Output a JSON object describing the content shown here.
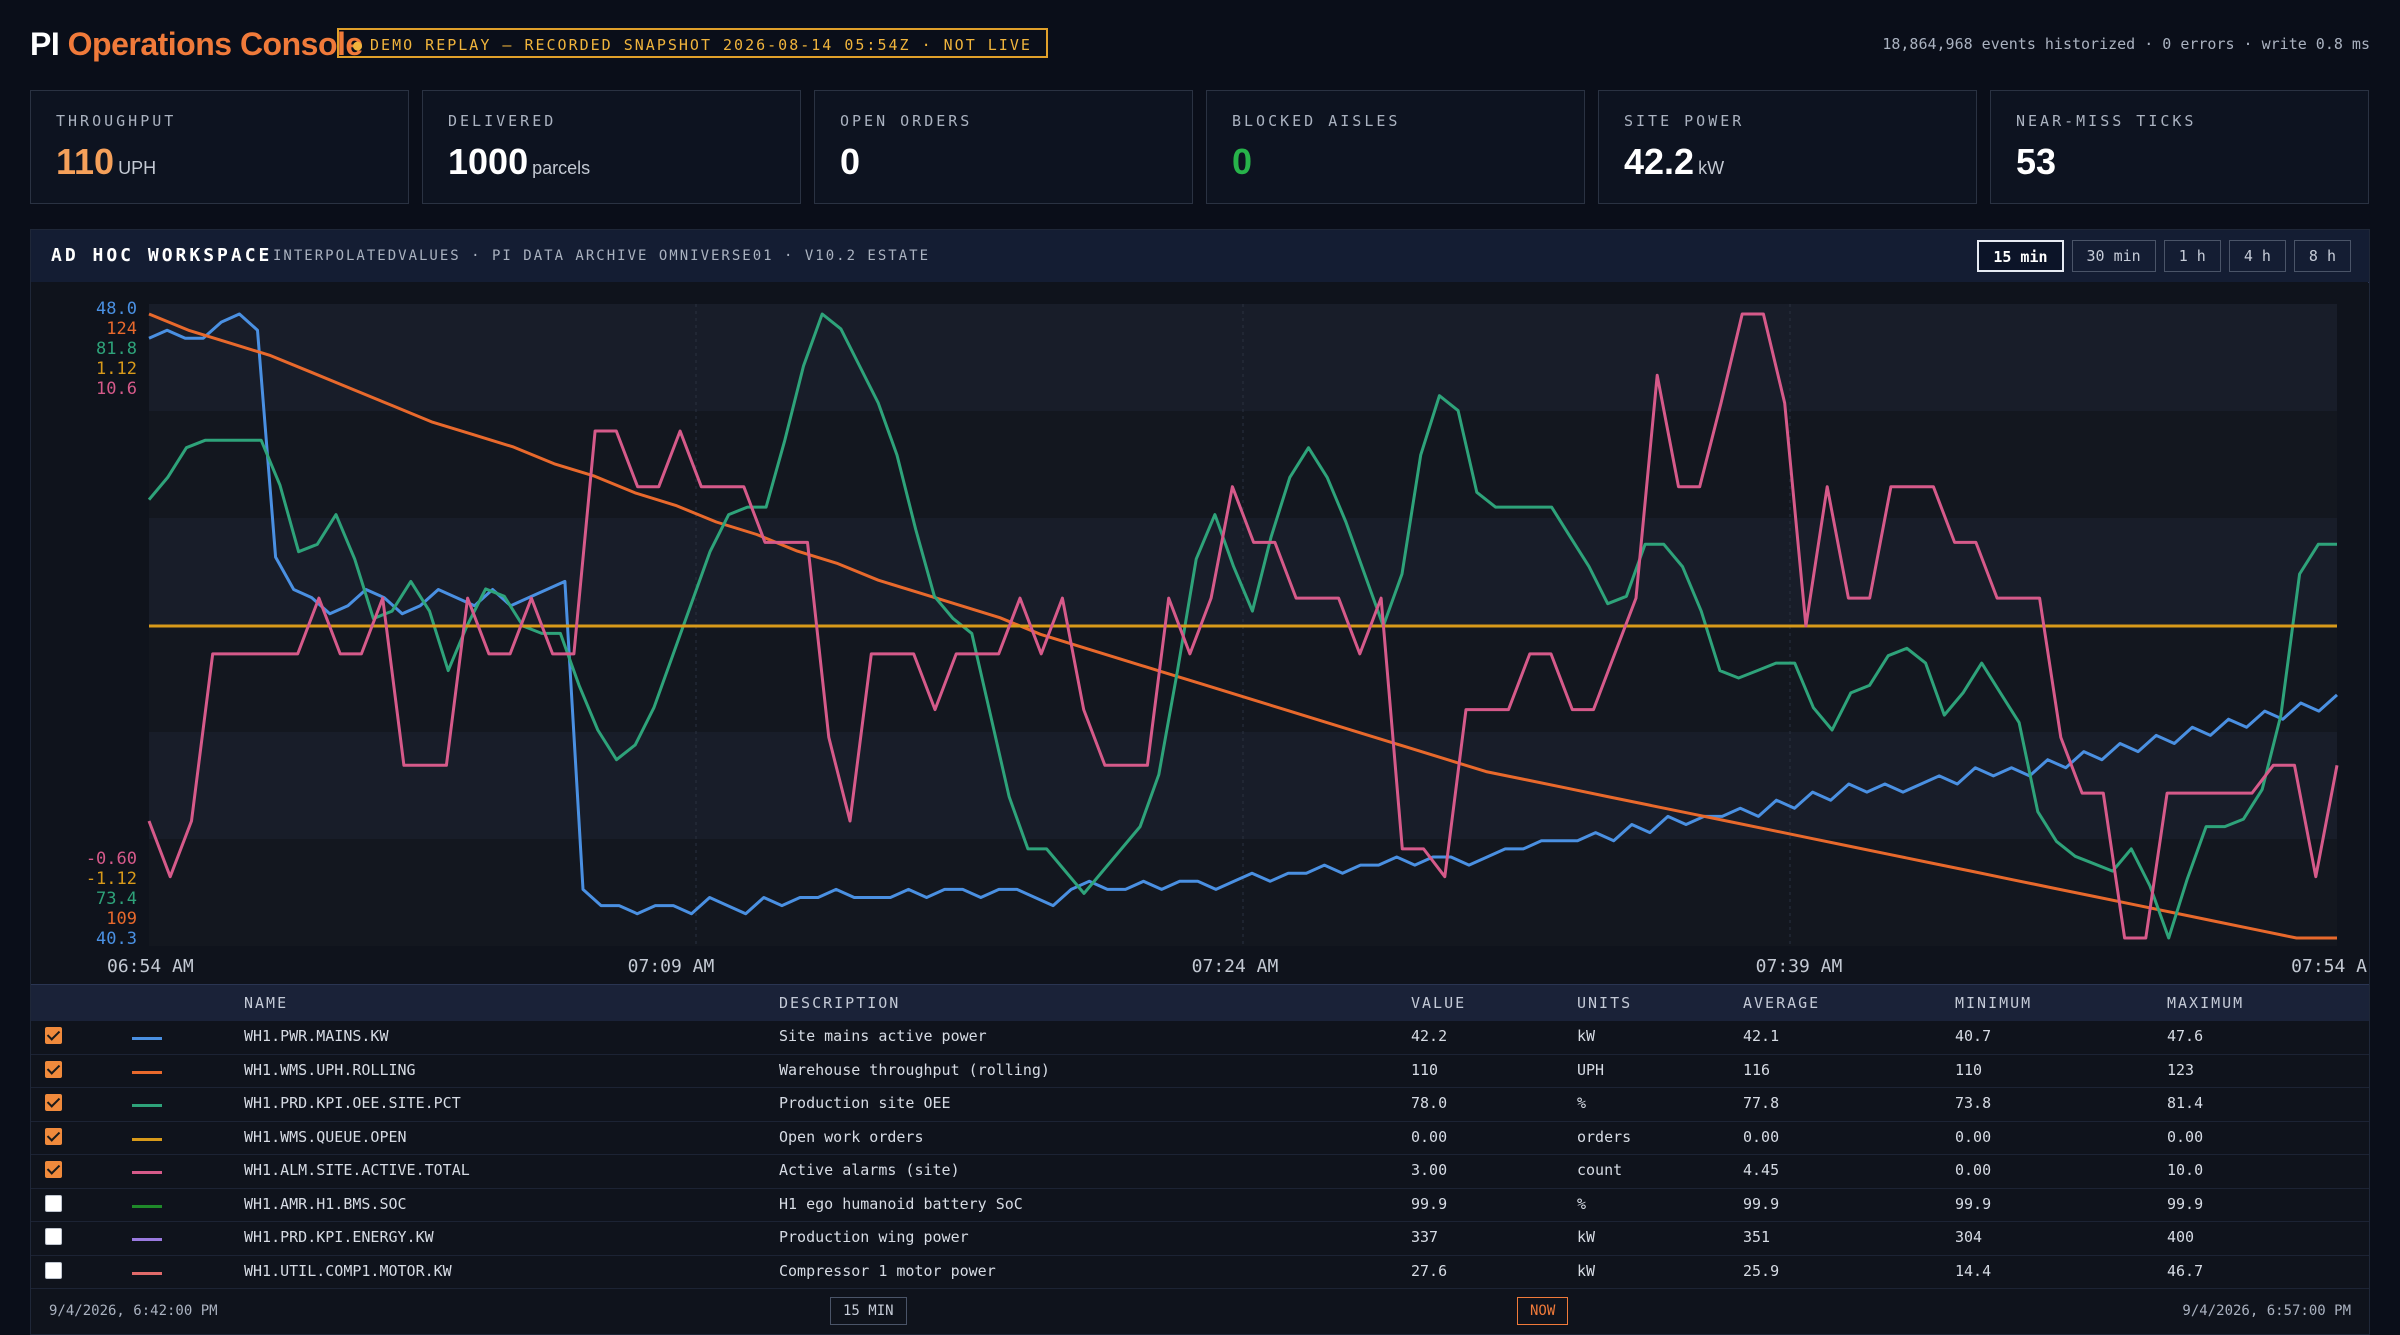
{
  "app": {
    "brand_pi": "PI",
    "brand_console": "Operations Console",
    "demo_badge": "DEMO REPLAY — RECORDED SNAPSHOT 2026-08-14 05:54Z · NOT LIVE",
    "stats": "18,864,968 events historized · 0 errors · write 0.8 ms"
  },
  "kpis": [
    {
      "label": "THROUGHPUT",
      "value": "110",
      "unit": "UPH",
      "color": "#f5a05a"
    },
    {
      "label": "DELIVERED",
      "value": "1000",
      "unit": "parcels",
      "color": "#ffffff"
    },
    {
      "label": "OPEN ORDERS",
      "value": "0",
      "unit": "",
      "color": "#ffffff"
    },
    {
      "label": "BLOCKED AISLES",
      "value": "0",
      "unit": "",
      "color": "#27b34a"
    },
    {
      "label": "SITE POWER",
      "value": "42.2",
      "unit": "kW",
      "color": "#ffffff"
    },
    {
      "label": "NEAR-MISS TICKS",
      "value": "53",
      "unit": "",
      "color": "#ffffff"
    }
  ],
  "workspace": {
    "title": "AD HOC WORKSPACE",
    "subtitle": "INTERPOLATEDVALUES · PI DATA ARCHIVE OMNIVERSE01 · V10.2 ESTATE",
    "ranges": [
      "15 min",
      "30 min",
      "1 h",
      "4 h",
      "8 h"
    ],
    "active_range": "15 min"
  },
  "chart_data": {
    "type": "line",
    "x_ticks": [
      "06:54 AM",
      "07:09 AM",
      "07:24 AM",
      "07:39 AM",
      "07:54 A"
    ],
    "grid": true,
    "series": [
      {
        "name": "WH1.PWR.MAINS.KW",
        "color": "#4a90e2",
        "axis_max": "48.0",
        "axis_min": "40.3",
        "min": 40.3,
        "max": 48.0,
        "values": [
          47.7,
          47.8,
          47.7,
          47.7,
          47.9,
          48.0,
          47.8,
          45.0,
          44.6,
          44.5,
          44.3,
          44.4,
          44.6,
          44.5,
          44.3,
          44.4,
          44.6,
          44.5,
          44.4,
          44.6,
          44.4,
          44.5,
          44.6,
          44.7,
          40.9,
          40.7,
          40.7,
          40.6,
          40.7,
          40.7,
          40.6,
          40.8,
          40.7,
          40.6,
          40.8,
          40.7,
          40.8,
          40.8,
          40.9,
          40.8,
          40.8,
          40.8,
          40.9,
          40.8,
          40.9,
          40.9,
          40.8,
          40.9,
          40.9,
          40.8,
          40.7,
          40.9,
          41.0,
          40.9,
          40.9,
          41.0,
          40.9,
          41.0,
          41.0,
          40.9,
          41.0,
          41.1,
          41.0,
          41.1,
          41.1,
          41.2,
          41.1,
          41.2,
          41.2,
          41.3,
          41.2,
          41.3,
          41.3,
          41.2,
          41.3,
          41.4,
          41.4,
          41.5,
          41.5,
          41.5,
          41.6,
          41.5,
          41.7,
          41.6,
          41.8,
          41.7,
          41.8,
          41.8,
          41.9,
          41.8,
          42.0,
          41.9,
          42.1,
          42.0,
          42.2,
          42.1,
          42.2,
          42.1,
          42.2,
          42.3,
          42.2,
          42.4,
          42.3,
          42.4,
          42.3,
          42.5,
          42.4,
          42.6,
          42.5,
          42.7,
          42.6,
          42.8,
          42.7,
          42.9,
          42.8,
          43.0,
          42.9,
          43.1,
          43.0,
          43.2,
          43.1,
          43.3
        ]
      },
      {
        "name": "WH1.WMS.UPH.ROLLING",
        "color": "#e8692c",
        "axis_max": "124",
        "axis_min": "109",
        "min": 109,
        "max": 124,
        "values": [
          124.0,
          123.6,
          123.3,
          123.0,
          122.6,
          122.2,
          121.8,
          121.4,
          121.1,
          120.8,
          120.4,
          120.1,
          119.7,
          119.4,
          119.0,
          118.7,
          118.3,
          118.0,
          117.6,
          117.3,
          117.0,
          116.7,
          116.3,
          116.0,
          115.7,
          115.4,
          115.1,
          114.8,
          114.5,
          114.2,
          113.9,
          113.6,
          113.3,
          113.0,
          112.8,
          112.6,
          112.4,
          112.2,
          112.0,
          111.8,
          111.6,
          111.4,
          111.2,
          111.0,
          110.8,
          110.6,
          110.4,
          110.2,
          110.0,
          109.8,
          109.6,
          109.4,
          109.2,
          109.0,
          109.0
        ]
      },
      {
        "name": "WH1.PRD.KPI.OEE.SITE.PCT",
        "color": "#2ea37a",
        "axis_max": "81.8",
        "axis_min": "73.4",
        "min": 73.4,
        "max": 81.8,
        "values": [
          79.3,
          79.6,
          80.0,
          80.1,
          80.1,
          80.1,
          80.1,
          79.5,
          78.6,
          78.7,
          79.1,
          78.5,
          77.7,
          77.8,
          78.2,
          77.8,
          77.0,
          77.6,
          78.1,
          78.0,
          77.6,
          77.5,
          77.5,
          76.8,
          76.2,
          75.8,
          76.0,
          76.5,
          77.2,
          77.9,
          78.6,
          79.1,
          79.2,
          79.2,
          80.1,
          81.1,
          81.8,
          81.6,
          81.1,
          80.6,
          79.9,
          78.9,
          78.0,
          77.7,
          77.5,
          76.4,
          75.3,
          74.6,
          74.6,
          74.3,
          74.0,
          74.3,
          74.6,
          74.9,
          75.6,
          77.0,
          78.5,
          79.1,
          78.4,
          77.8,
          78.8,
          79.6,
          80.0,
          79.6,
          79.0,
          78.3,
          77.6,
          78.3,
          79.9,
          80.7,
          80.5,
          79.4,
          79.2,
          79.2,
          79.2,
          79.2,
          78.8,
          78.4,
          77.9,
          78.0,
          78.7,
          78.7,
          78.4,
          77.8,
          77.0,
          76.9,
          77.0,
          77.1,
          77.1,
          76.5,
          76.2,
          76.7,
          76.8,
          77.2,
          77.3,
          77.1,
          76.4,
          76.7,
          77.1,
          76.7,
          76.3,
          75.1,
          74.7,
          74.5,
          74.4,
          74.3,
          74.6,
          74.1,
          73.4,
          74.2,
          74.9,
          74.9,
          75.0,
          75.4,
          76.4,
          78.3,
          78.7,
          78.7
        ]
      },
      {
        "name": "WH1.WMS.QUEUE.OPEN",
        "color": "#d89a1a",
        "axis_max": "1.12",
        "axis_min": "-1.12",
        "min": -1.12,
        "max": 1.12,
        "values": [
          0,
          0,
          0,
          0,
          0,
          0,
          0,
          0,
          0,
          0,
          0,
          0,
          0,
          0,
          0,
          0,
          0,
          0,
          0,
          0,
          0,
          0,
          0,
          0,
          0,
          0,
          0,
          0,
          0,
          0,
          0,
          0,
          0,
          0,
          0,
          0,
          0,
          0,
          0,
          0,
          0,
          0,
          0,
          0,
          0,
          0,
          0,
          0,
          0,
          0,
          0,
          0,
          0,
          0,
          0
        ]
      },
      {
        "name": "WH1.ALM.SITE.ACTIVE.TOTAL",
        "color": "#d65a8a",
        "axis_max": "10.6",
        "axis_min": "-0.60",
        "min": -0.6,
        "max": 10.6,
        "values": [
          1.5,
          0.5,
          1.5,
          4.5,
          4.5,
          4.5,
          4.5,
          4.5,
          5.5,
          4.5,
          4.5,
          5.5,
          2.5,
          2.5,
          2.5,
          5.5,
          4.5,
          4.5,
          5.5,
          4.5,
          4.5,
          8.5,
          8.5,
          7.5,
          7.5,
          8.5,
          7.5,
          7.5,
          7.5,
          6.5,
          6.5,
          6.5,
          3.0,
          1.5,
          4.5,
          4.5,
          4.5,
          3.5,
          4.5,
          4.5,
          4.5,
          5.5,
          4.5,
          5.5,
          3.5,
          2.5,
          2.5,
          2.5,
          5.5,
          4.5,
          5.5,
          7.5,
          6.5,
          6.5,
          5.5,
          5.5,
          5.5,
          4.5,
          5.5,
          1.0,
          1.0,
          0.5,
          3.5,
          3.5,
          3.5,
          4.5,
          4.5,
          3.5,
          3.5,
          4.5,
          5.5,
          9.5,
          7.5,
          7.5,
          9.0,
          10.6,
          10.6,
          9.0,
          5.0,
          7.5,
          5.5,
          5.5,
          7.5,
          7.5,
          7.5,
          6.5,
          6.5,
          5.5,
          5.5,
          5.5,
          3.0,
          2.0,
          2.0,
          -0.6,
          -0.6,
          2.0,
          2.0,
          2.0,
          2.0,
          2.0,
          2.5,
          2.5,
          0.5,
          2.5
        ]
      }
    ]
  },
  "table": {
    "headers": [
      "NAME",
      "DESCRIPTION",
      "VALUE",
      "UNITS",
      "AVERAGE",
      "MINIMUM",
      "MAXIMUM"
    ],
    "rows": [
      {
        "checked": true,
        "color": "#4a90e2",
        "name": "WH1.PWR.MAINS.KW",
        "desc": "Site mains active power",
        "value": "42.2",
        "units": "kW",
        "avg": "42.1",
        "min": "40.7",
        "max": "47.6"
      },
      {
        "checked": true,
        "color": "#e8692c",
        "name": "WH1.WMS.UPH.ROLLING",
        "desc": "Warehouse throughput (rolling)",
        "value": "110",
        "units": "UPH",
        "avg": "116",
        "min": "110",
        "max": "123"
      },
      {
        "checked": true,
        "color": "#2ea37a",
        "name": "WH1.PRD.KPI.OEE.SITE.PCT",
        "desc": "Production site OEE",
        "value": "78.0",
        "units": "%",
        "avg": "77.8",
        "min": "73.8",
        "max": "81.4"
      },
      {
        "checked": true,
        "color": "#d89a1a",
        "name": "WH1.WMS.QUEUE.OPEN",
        "desc": "Open work orders",
        "value": "0.00",
        "units": "orders",
        "avg": "0.00",
        "min": "0.00",
        "max": "0.00"
      },
      {
        "checked": true,
        "color": "#d65a8a",
        "name": "WH1.ALM.SITE.ACTIVE.TOTAL",
        "desc": "Active alarms (site)",
        "value": "3.00",
        "units": "count",
        "avg": "4.45",
        "min": "0.00",
        "max": "10.0"
      },
      {
        "checked": false,
        "color": "#1f8a2a",
        "name": "WH1.AMR.H1.BMS.SOC",
        "desc": "H1 ego humanoid battery SoC",
        "value": "99.9",
        "units": "%",
        "avg": "99.9",
        "min": "99.9",
        "max": "99.9"
      },
      {
        "checked": false,
        "color": "#9a7ae0",
        "name": "WH1.PRD.KPI.ENERGY.KW",
        "desc": "Production wing power",
        "value": "337",
        "units": "kW",
        "avg": "351",
        "min": "304",
        "max": "400"
      },
      {
        "checked": false,
        "color": "#e06a6a",
        "name": "WH1.UTIL.COMP1.MOTOR.KW",
        "desc": "Compressor 1 motor power",
        "value": "27.6",
        "units": "kW",
        "avg": "25.9",
        "min": "14.4",
        "max": "46.7"
      }
    ]
  },
  "footer": {
    "start": "9/4/2026, 6:42:00 PM",
    "span": "15 MIN",
    "now": "NOW",
    "end": "9/4/2026, 6:57:00 PM"
  }
}
